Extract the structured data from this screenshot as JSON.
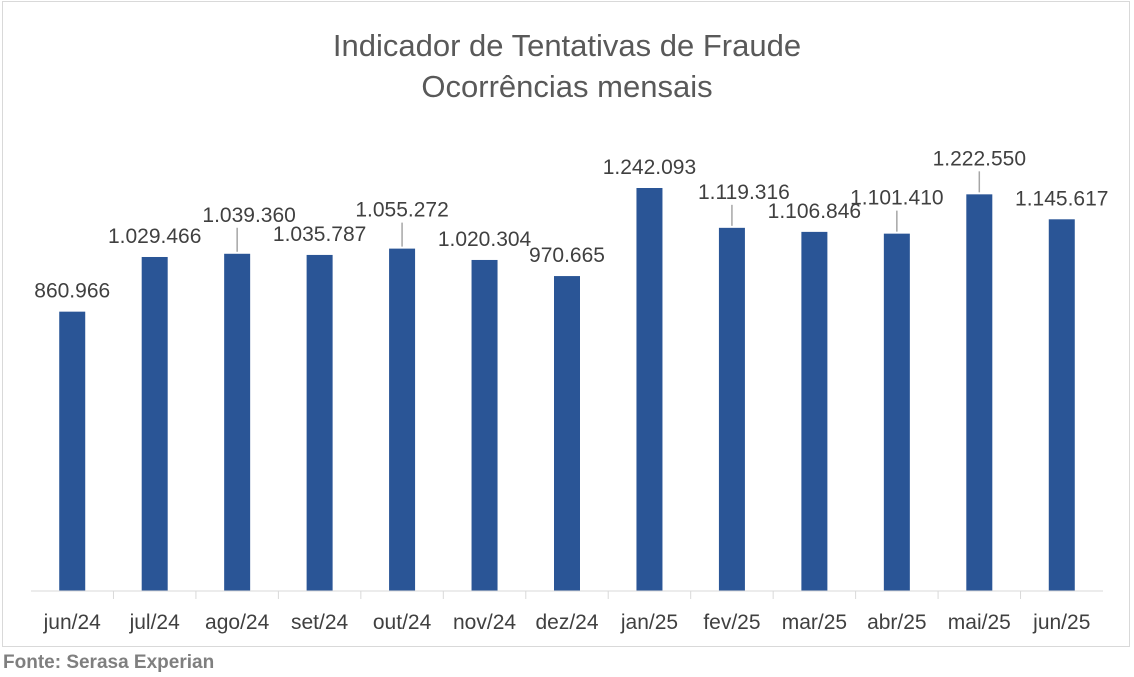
{
  "chart_data": {
    "type": "bar",
    "title": "Indicador de Tentativas de Fraude",
    "subtitle": "Ocorrências mensais",
    "categories": [
      "jun/24",
      "jul/24",
      "ago/24",
      "set/24",
      "out/24",
      "nov/24",
      "dez/24",
      "jan/25",
      "fev/25",
      "mar/25",
      "abr/25",
      "mai/25",
      "jun/25"
    ],
    "values": [
      860966,
      1029466,
      1039360,
      1035787,
      1055272,
      1020304,
      970665,
      1242093,
      1119316,
      1106846,
      1101410,
      1222550,
      1145617
    ],
    "data_labels": [
      "860.966",
      "1.029.466",
      "1.039.360",
      "1.035.787",
      "1.055.272",
      "1.020.304",
      "970.665",
      "1.242.093",
      "1.119.316",
      "1.106.846",
      "1.101.410",
      "1.222.550",
      "1.145.617"
    ],
    "xlabel": "",
    "ylabel": "",
    "ylim": [
      0,
      1242093
    ],
    "grid": false,
    "legend": "none",
    "bar_color": "#2a5596",
    "axis_color": "#d9d9d9",
    "leader_color": "#a6a6a6"
  },
  "source_note": "Fonte: Serasa Experian"
}
